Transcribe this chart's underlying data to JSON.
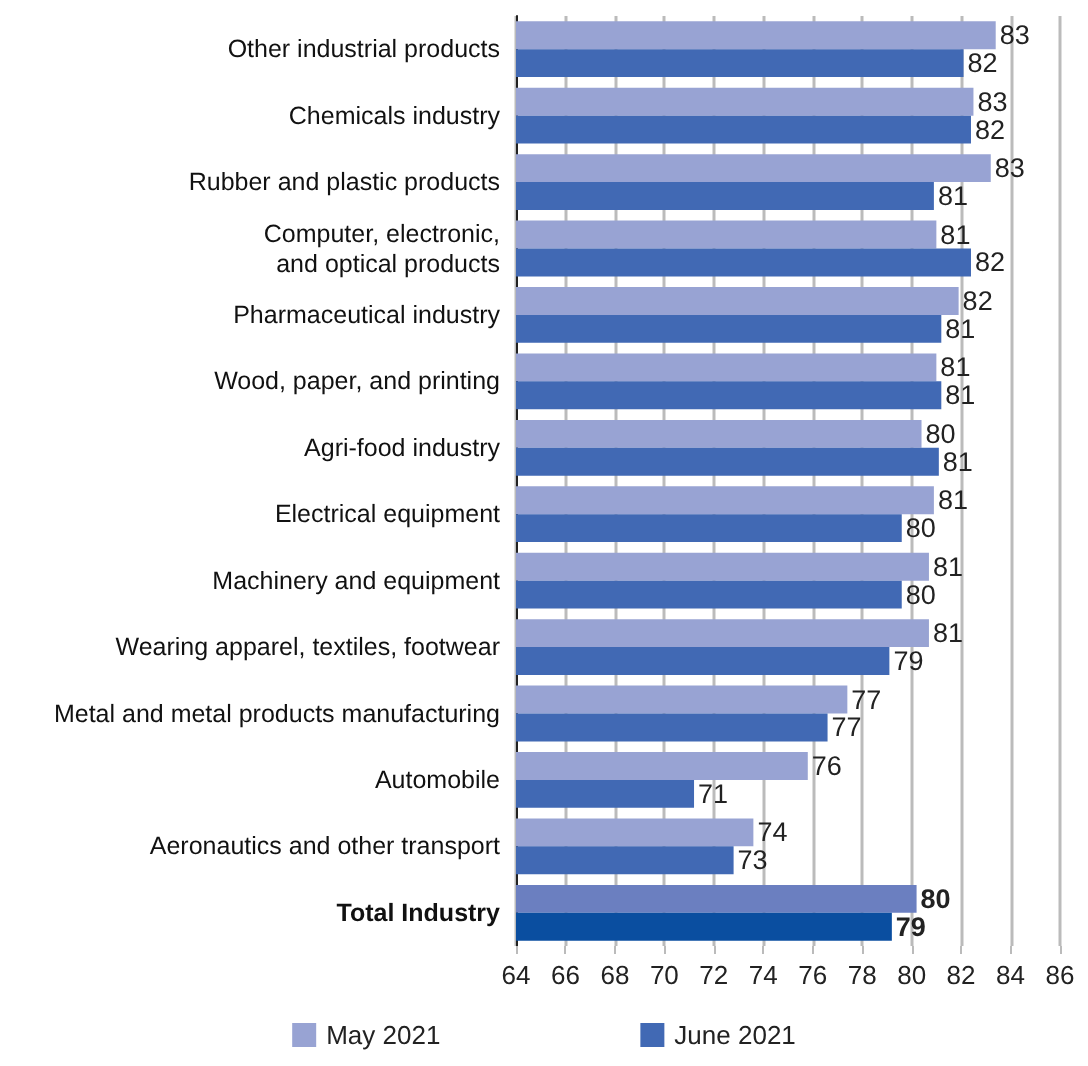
{
  "chart_data": {
    "type": "bar",
    "orientation": "horizontal",
    "categories": [
      "Other industrial products",
      "Chemicals industry",
      "Rubber and plastic products",
      "Computer, electronic,\nand optical products",
      "Pharmaceutical industry",
      "Wood, paper, and printing",
      "Agri-food industry",
      "Electrical equipment",
      "Machinery and equipment",
      "Wearing apparel, textiles, footwear",
      "Metal and metal products manufacturing",
      "Automobile",
      "Aeronautics and other transport",
      "Total Industry"
    ],
    "series": [
      {
        "name": "May 2021",
        "color": "#98a3d3",
        "colors": [
          "#98a3d3",
          "#98a3d3",
          "#98a3d3",
          "#98a3d3",
          "#98a3d3",
          "#98a3d3",
          "#98a3d3",
          "#98a3d3",
          "#98a3d3",
          "#98a3d3",
          "#98a3d3",
          "#98a3d3",
          "#98a3d3",
          "#6b7fc0"
        ],
        "values": [
          83.4,
          82.5,
          83.2,
          81.0,
          81.9,
          81.0,
          80.4,
          80.9,
          80.7,
          80.7,
          77.4,
          75.8,
          73.6,
          80.2
        ],
        "value_labels": [
          "83",
          "83",
          "83",
          "81",
          "82",
          "81",
          "80",
          "81",
          "81",
          "81",
          "77",
          "76",
          "74",
          "80"
        ]
      },
      {
        "name": "June 2021",
        "color": "#4169b4",
        "colors": [
          "#4169b4",
          "#4169b4",
          "#4169b4",
          "#4169b4",
          "#4169b4",
          "#4169b4",
          "#4169b4",
          "#4169b4",
          "#4169b4",
          "#4169b4",
          "#4169b4",
          "#4169b4",
          "#4169b4",
          "#0a4ea0"
        ],
        "values": [
          82.1,
          82.4,
          80.9,
          82.4,
          81.2,
          81.2,
          81.1,
          79.6,
          79.6,
          79.1,
          76.6,
          71.2,
          72.8,
          79.2
        ],
        "value_labels": [
          "82",
          "82",
          "81",
          "82",
          "81",
          "81",
          "81",
          "80",
          "80",
          "79",
          "77",
          "71",
          "73",
          "79"
        ]
      }
    ],
    "xlim": [
      64,
      86
    ],
    "xticks": [
      64,
      66,
      68,
      70,
      72,
      74,
      76,
      78,
      80,
      82,
      84,
      86
    ],
    "grid": "x",
    "legend": "bottom"
  }
}
